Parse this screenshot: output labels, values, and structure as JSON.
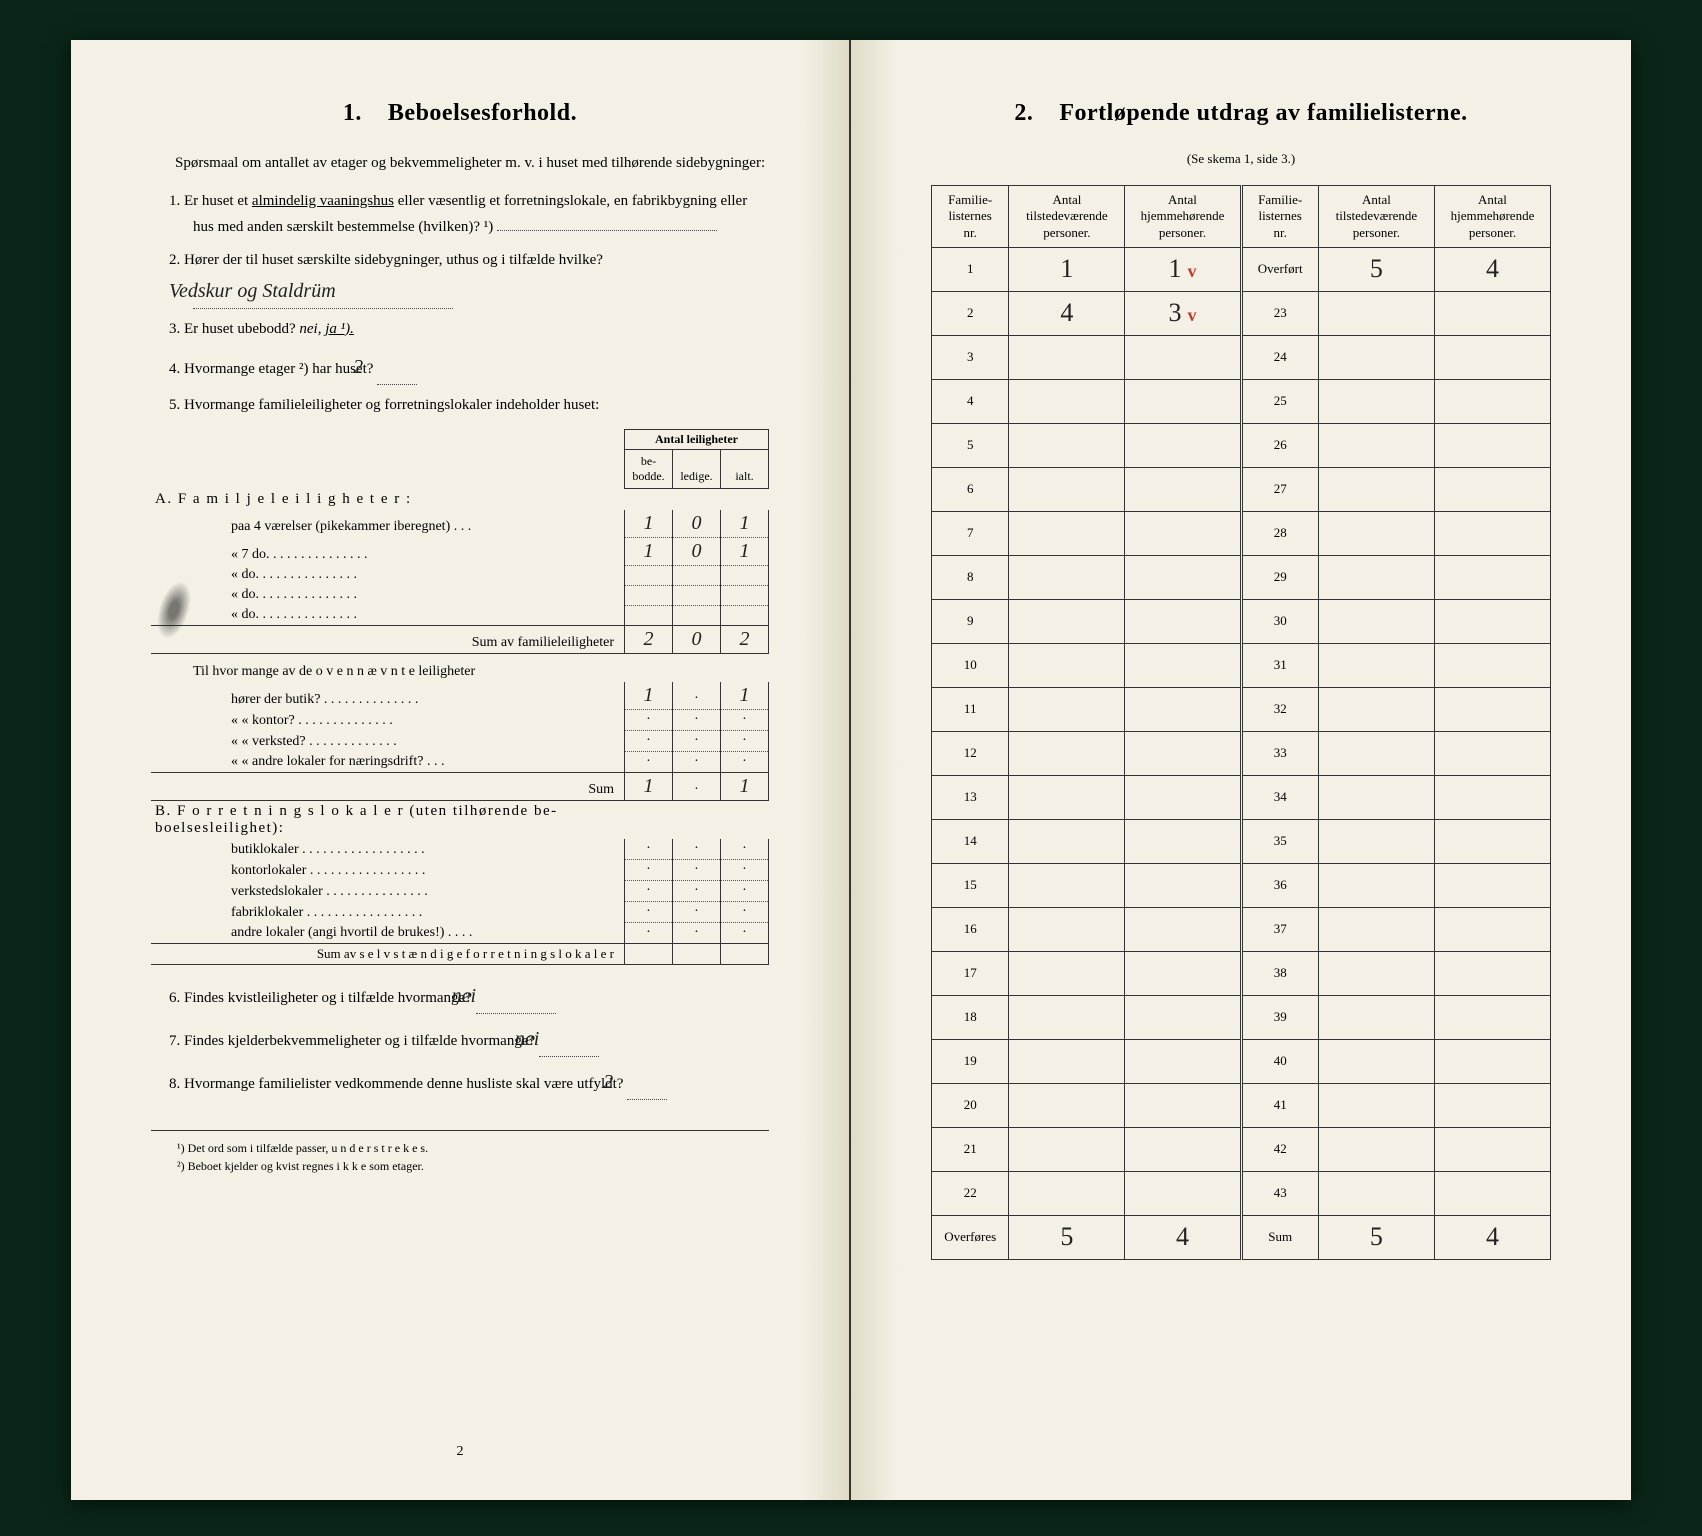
{
  "left": {
    "title_num": "1.",
    "title": "Beboelsesforhold.",
    "intro": "Spørsmaal om antallet av etager og bekvemmeligheter m. v. i huset med tilhørende sidebygninger:",
    "q1_pre": "1.  Er huset et ",
    "q1_under": "almindelig vaaningshus",
    "q1_post": " eller væsentlig et forretnings­lokale, en fabrikbygning eller hus med anden særskilt bestem­melse (hvilken)? ¹)",
    "q2_pre": "2.  Hører der til huset særskilte sidebygninger, uthus og i tilfælde hvilke? ",
    "q2_ans": "Vedskur og Staldrüm",
    "q3_pre": "3.  Er huset ubebodd? ",
    "q3_nei": "nei,",
    "q3_ja": " ja ¹).",
    "q4_pre": "4.  Hvormange etager ²) har huset? ",
    "q4_ans": "2",
    "q5": "5.  Hvormange familieleiligheter og forretningslokaler indeholder huset:",
    "tbl_head_span": "Antal leiligheter",
    "tbl_head_be": "be-\nbodde.",
    "tbl_head_le": "ledige.",
    "tbl_head_ia": "ialt.",
    "secA": "A.  F a m i l j e l e i l i g h e t e r :",
    "rowA1_lbl": "paa 4   værelser (pikekammer iberegnet) . . .",
    "rowA1": {
      "be": "1",
      "le": "0",
      "ia": "1"
    },
    "rowA2_lbl": "«   7      do.      . . . . . . . . . . . . . .",
    "rowA2": {
      "be": "1",
      "le": "0",
      "ia": "1"
    },
    "rowA3_lbl": "«          do.      . . . . . . . . . . . . . .",
    "rowA4_lbl": "«          do.      . . . . . . . . . . . . . .",
    "rowA5_lbl": "«          do.      . . . . . . . . . . . . . .",
    "sumA_lbl": "Sum av familieleiligheter",
    "sumA": {
      "be": "2",
      "le": "0",
      "ia": "2"
    },
    "midQ": "Til hvor mange av de  o v e n n æ v n t e  leiligheter",
    "mid1_lbl": "hører der butik? . . . . . . . . . . . . . .",
    "mid1": {
      "be": "1",
      "le": "·",
      "ia": "1"
    },
    "mid2_lbl": "«     «   kontor? . . . . . . . . . . . . . .",
    "mid2": {
      "be": "·",
      "le": "·",
      "ia": "·"
    },
    "mid3_lbl": "«     «   verksted? . . . . . . . . . . . . .",
    "mid3": {
      "be": "·",
      "le": "·",
      "ia": "·"
    },
    "mid4_lbl": "«     «   andre lokaler for næringsdrift? . . .",
    "mid4": {
      "be": "·",
      "le": "·",
      "ia": "·"
    },
    "sumMid_lbl": "Sum",
    "sumMid": {
      "be": "1",
      "le": "·",
      "ia": "1"
    },
    "secB": "B.  F o r r e t n i n g s l o k a l e r  (uten tilhørende be-\nboelsesleilighet):",
    "b1": "butiklokaler . . . . . . . . . . . . . . . . . .",
    "b2": "kontorlokaler . . . . . . . . . . . . . . . . .",
    "b3": "verkstedslokaler . . . . . . . . . . . . . . .",
    "b4": "fabriklokaler . . . . . . . . . . . . . . . . .",
    "b5": "andre lokaler (angi hvortil de brukes!) . . . .",
    "sumB_lbl": "Sum av s e l v s t æ n d i g e  f o r r e t n i n g s l o k a l e r",
    "q6_pre": "6.  Findes kvistleiligheter og i tilfælde hvormange? ",
    "q6_ans": "nei",
    "q7_pre": "7.  Findes kjelderbekvemmeligheter og i tilfælde hvormange? ",
    "q7_ans": "nei",
    "q8_pre": "8.  Hvormange familielister vedkommende denne husliste skal være utfyldt? ",
    "q8_ans": "2",
    "fn1": "¹) Det ord som i tilfælde passer,  u n d e r s t r e k e s.",
    "fn2": "²) Beboet kjelder og kvist regnes  i k k e  som etager.",
    "page_num": "2"
  },
  "right": {
    "title_num": "2.",
    "title": "Fortløpende utdrag av familielisterne.",
    "sub": "(Se skema 1, side 3.)",
    "head_nr": "Familie-\nlisternes\nnr.",
    "head_til": "Antal\ntilstedeværende\npersoner.",
    "head_hj": "Antal\nhjemmehørende\npersoner.",
    "overfort": "Overført",
    "overfores": "Overføres",
    "sum_lbl": "Sum",
    "rows_left_nr": [
      "1",
      "2",
      "3",
      "4",
      "5",
      "6",
      "7",
      "8",
      "9",
      "10",
      "11",
      "12",
      "13",
      "14",
      "15",
      "16",
      "17",
      "18",
      "19",
      "20",
      "21",
      "22"
    ],
    "rows_right_nr": [
      "23",
      "24",
      "25",
      "26",
      "27",
      "28",
      "29",
      "30",
      "31",
      "32",
      "33",
      "34",
      "35",
      "36",
      "37",
      "38",
      "39",
      "40",
      "41",
      "42",
      "43"
    ],
    "row1_til": "1",
    "row1_hj": "1",
    "row1_tick": "v",
    "row2_til": "4",
    "row2_hj": "3",
    "row2_tick": "v",
    "overfort_til": "5",
    "overfort_hj": "4",
    "overfores_til": "5",
    "overfores_hj": "4",
    "sum_til": "5",
    "sum_hj": "4"
  },
  "style": {
    "paper": "#f4f0e6",
    "ink": "#1a1a1a",
    "hand": "#222222",
    "red": "#c0392b",
    "border": "#333333",
    "title_fs": 24,
    "body_fs": 15,
    "table_fs": 13,
    "hand_fs": 26
  }
}
